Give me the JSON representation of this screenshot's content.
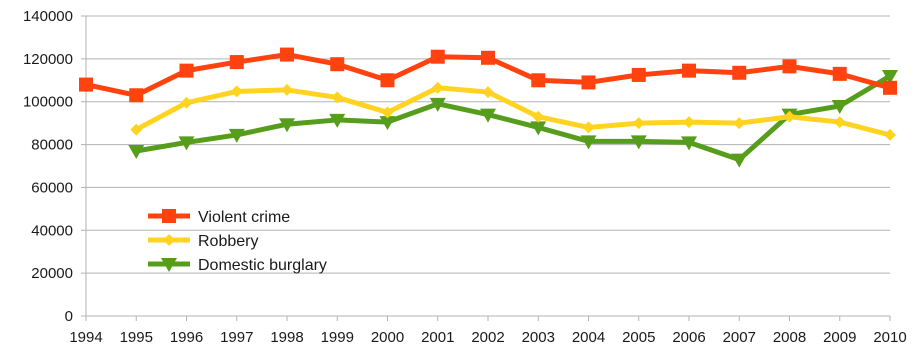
{
  "chart_data": {
    "type": "line",
    "title": "",
    "xlabel": "",
    "ylabel": "",
    "x": [
      "1994",
      "1995",
      "1996",
      "1997",
      "1998",
      "1999",
      "2000",
      "2001",
      "2002",
      "2003",
      "2004",
      "2005",
      "2006",
      "2007",
      "2008",
      "2009",
      "2010"
    ],
    "ylim": [
      0,
      140000
    ],
    "yticks": [
      "0",
      "20000",
      "40000",
      "60000",
      "80000",
      "100000",
      "120000",
      "140000"
    ],
    "grid": "horizontal",
    "legend_position": "lower-left inside plot",
    "series": [
      {
        "name": "Violent crime",
        "color": "#ff420e",
        "marker": "square",
        "values": [
          108000,
          103000,
          114500,
          118500,
          122000,
          117500,
          110000,
          121000,
          120500,
          110000,
          109000,
          112500,
          114500,
          113500,
          116500,
          113000,
          106500
        ]
      },
      {
        "name": "Robbery",
        "color": "#ffd320",
        "marker": "diamond",
        "values": [
          null,
          87000,
          99500,
          104800,
          105500,
          102000,
          95000,
          106500,
          104500,
          93000,
          88000,
          90000,
          90500,
          90000,
          93000,
          90500,
          84500
        ]
      },
      {
        "name": "Domestic burglary",
        "color": "#579d1c",
        "marker": "triangle-down",
        "values": [
          null,
          77000,
          81000,
          84500,
          89500,
          91500,
          90500,
          99000,
          94000,
          88000,
          81500,
          81500,
          81000,
          73000,
          94000,
          98000,
          112000
        ]
      }
    ]
  }
}
